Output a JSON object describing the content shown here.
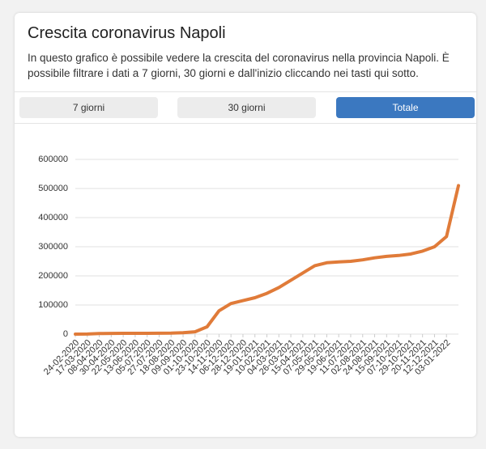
{
  "header": {
    "title": "Crescita coronavirus Napoli",
    "description": "In questo grafico è possibile vedere la crescita del coronavirus nella provincia Napoli. È possibile filtrare i dati a 7 giorni, 30 giorni e dall'inizio cliccando nei tasti qui sotto."
  },
  "buttons": [
    "7 giorni",
    "30 giorni",
    "Totale"
  ],
  "chart_data": {
    "type": "line",
    "categories": [
      "24-02-2020",
      "17-03-2020",
      "08-04-2020",
      "30-04-2020",
      "22-05-2020",
      "13-06-2020",
      "05-07-2020",
      "27-07-2020",
      "18-08-2020",
      "09-09-2020",
      "01-10-2020",
      "23-10-2020",
      "14-11-2020",
      "06-12-2020",
      "28-12-2020",
      "19-01-2021",
      "10-02-2021",
      "04-03-2021",
      "26-03-2021",
      "15-04-2021",
      "07-05-2021",
      "29-05-2021",
      "19-06-2021",
      "11-07-2021",
      "02-08-2021",
      "24-08-2021",
      "15-09-2021",
      "07-10-2021",
      "29-10-2021",
      "20-11-2021",
      "12-12-2021",
      "03-01-2022",
      null
    ],
    "values": [
      0,
      500,
      2000,
      2500,
      2700,
      2800,
      2900,
      3100,
      3500,
      5000,
      8000,
      25000,
      80000,
      105000,
      115000,
      125000,
      140000,
      160000,
      185000,
      210000,
      235000,
      245000,
      248000,
      250000,
      255000,
      262000,
      267000,
      270000,
      275000,
      285000,
      300000,
      335000,
      510000
    ],
    "color": "#e07b39",
    "ylim": [
      0,
      600000
    ],
    "yticks": [
      0,
      100000,
      200000,
      300000,
      400000,
      500000,
      600000
    ],
    "grid": true
  }
}
